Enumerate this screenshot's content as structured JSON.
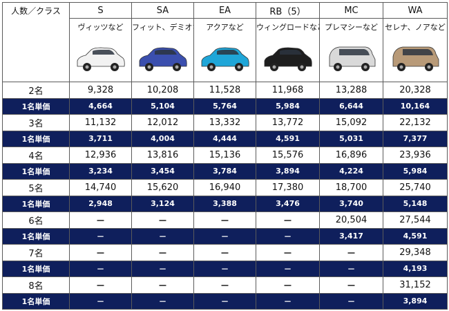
{
  "header": {
    "corner_label": "人数／クラス",
    "classes": [
      {
        "code": "S",
        "example": "ヴィッツなど",
        "car_color": "#f2f2f2"
      },
      {
        "code": "SA",
        "example": "フィット、デミオなど",
        "car_color": "#3b4fae"
      },
      {
        "code": "EA",
        "example": "アクアなど",
        "car_color": "#1fa6d8"
      },
      {
        "code": "RB（5）",
        "example": "ウィングロードなど",
        "car_color": "#1e1e1e"
      },
      {
        "code": "MC",
        "example": "プレマシーなど",
        "car_color": "#d9d9d9"
      },
      {
        "code": "WA",
        "example": "セレナ、ノアなど",
        "car_color": "#b89a78"
      }
    ]
  },
  "rows": [
    {
      "label": "2名",
      "values": [
        "9,328",
        "10,208",
        "11,528",
        "11,968",
        "13,288",
        "20,328"
      ]
    },
    {
      "label": "1名単価",
      "values": [
        "4,664",
        "5,104",
        "5,764",
        "5,984",
        "6,644",
        "10,164"
      ]
    },
    {
      "label": "3名",
      "values": [
        "11,132",
        "12,012",
        "13,332",
        "13,772",
        "15,092",
        "22,132"
      ]
    },
    {
      "label": "1名単価",
      "values": [
        "3,711",
        "4,004",
        "4,444",
        "4,591",
        "5,031",
        "7,377"
      ]
    },
    {
      "label": "4名",
      "values": [
        "12,936",
        "13,816",
        "15,136",
        "15,576",
        "16,896",
        "23,936"
      ]
    },
    {
      "label": "1名単価",
      "values": [
        "3,234",
        "3,454",
        "3,784",
        "3,894",
        "4,224",
        "5,984"
      ]
    },
    {
      "label": "5名",
      "values": [
        "14,740",
        "15,620",
        "16,940",
        "17,380",
        "18,700",
        "25,740"
      ]
    },
    {
      "label": "1名単価",
      "values": [
        "2,948",
        "3,124",
        "3,388",
        "3,476",
        "3,740",
        "5,148"
      ]
    },
    {
      "label": "6名",
      "values": [
        "－",
        "－",
        "－",
        "－",
        "20,504",
        "27,544"
      ]
    },
    {
      "label": "1名単価",
      "values": [
        "－",
        "－",
        "－",
        "－",
        "3,417",
        "4,591"
      ]
    },
    {
      "label": "7名",
      "values": [
        "－",
        "－",
        "－",
        "－",
        "－",
        "29,348"
      ]
    },
    {
      "label": "1名単価",
      "values": [
        "－",
        "－",
        "－",
        "－",
        "－",
        "4,193"
      ]
    },
    {
      "label": "8名",
      "values": [
        "－",
        "－",
        "－",
        "－",
        "－",
        "31,152"
      ]
    },
    {
      "label": "1名単価",
      "values": [
        "－",
        "－",
        "－",
        "－",
        "－",
        "3,894"
      ]
    }
  ]
}
